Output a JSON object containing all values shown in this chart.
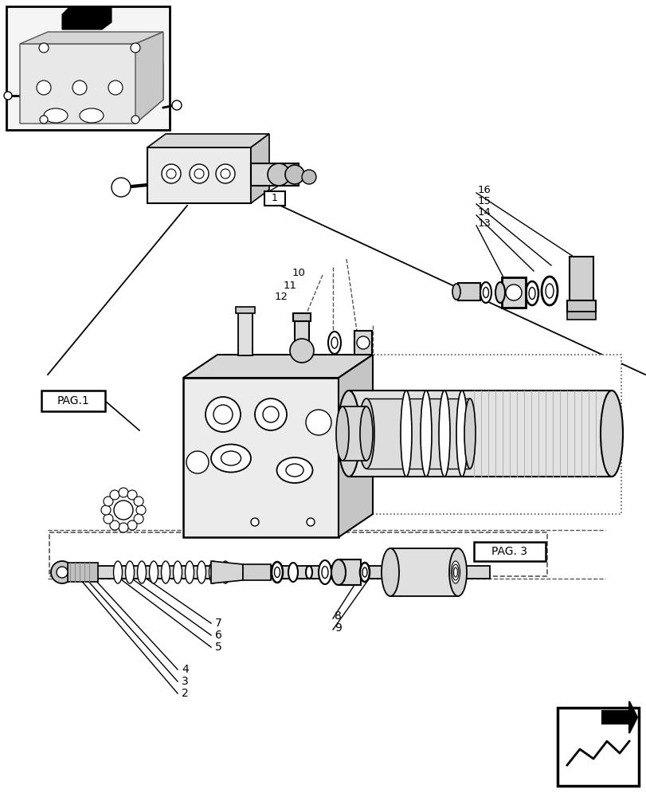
{
  "bg_color": "#ffffff",
  "line_color": "#000000",
  "fig_width": 8.12,
  "fig_height": 10.0,
  "dpi": 100
}
